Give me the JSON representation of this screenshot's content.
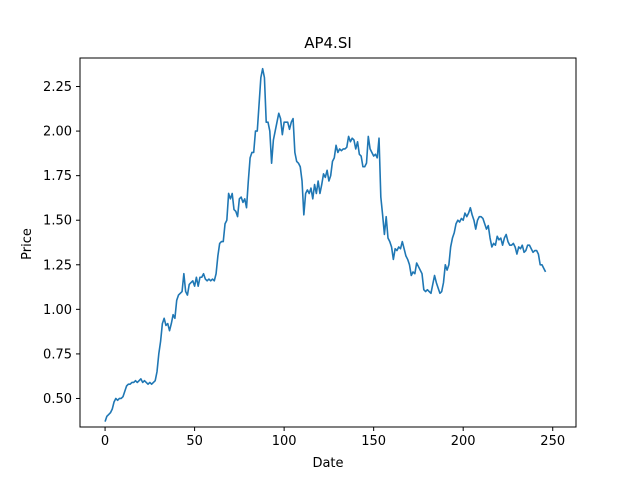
{
  "chart_data": {
    "type": "line",
    "title": "AP4.SI",
    "xlabel": "Date",
    "ylabel": "Price",
    "xlim": [
      -14,
      263
    ],
    "ylim": [
      0.34,
      2.41
    ],
    "xticks": [
      0,
      50,
      100,
      150,
      200,
      250
    ],
    "yticks": [
      0.5,
      0.75,
      1.0,
      1.25,
      1.5,
      1.75,
      2.0,
      2.25
    ],
    "xtick_labels": [
      "0",
      "50",
      "100",
      "150",
      "200",
      "250"
    ],
    "ytick_labels": [
      "0.50",
      "0.75",
      "1.00",
      "1.25",
      "1.50",
      "1.75",
      "2.00",
      "2.25"
    ],
    "grid": false,
    "series": [
      {
        "color": "#1f77b4",
        "points": [
          [
            0,
            0.37
          ],
          [
            1,
            0.4
          ],
          [
            2,
            0.41
          ],
          [
            3,
            0.42
          ],
          [
            4,
            0.44
          ],
          [
            5,
            0.48
          ],
          [
            6,
            0.5
          ],
          [
            7,
            0.49
          ],
          [
            8,
            0.5
          ],
          [
            9,
            0.5
          ],
          [
            10,
            0.51
          ],
          [
            11,
            0.54
          ],
          [
            12,
            0.57
          ],
          [
            13,
            0.58
          ],
          [
            14,
            0.58
          ],
          [
            15,
            0.59
          ],
          [
            16,
            0.59
          ],
          [
            17,
            0.6
          ],
          [
            18,
            0.59
          ],
          [
            19,
            0.6
          ],
          [
            20,
            0.61
          ],
          [
            21,
            0.59
          ],
          [
            22,
            0.6
          ],
          [
            23,
            0.59
          ],
          [
            24,
            0.58
          ],
          [
            25,
            0.59
          ],
          [
            26,
            0.58
          ],
          [
            27,
            0.59
          ],
          [
            28,
            0.6
          ],
          [
            29,
            0.65
          ],
          [
            30,
            0.75
          ],
          [
            31,
            0.82
          ],
          [
            32,
            0.92
          ],
          [
            33,
            0.95
          ],
          [
            34,
            0.91
          ],
          [
            35,
            0.92
          ],
          [
            36,
            0.88
          ],
          [
            37,
            0.92
          ],
          [
            38,
            0.97
          ],
          [
            39,
            0.95
          ],
          [
            40,
            1.05
          ],
          [
            41,
            1.08
          ],
          [
            42,
            1.09
          ],
          [
            43,
            1.1
          ],
          [
            44,
            1.2
          ],
          [
            45,
            1.1
          ],
          [
            46,
            1.08
          ],
          [
            47,
            1.14
          ],
          [
            48,
            1.15
          ],
          [
            49,
            1.16
          ],
          [
            50,
            1.13
          ],
          [
            51,
            1.18
          ],
          [
            52,
            1.13
          ],
          [
            53,
            1.18
          ],
          [
            54,
            1.18
          ],
          [
            55,
            1.2
          ],
          [
            56,
            1.17
          ],
          [
            57,
            1.16
          ],
          [
            58,
            1.17
          ],
          [
            59,
            1.16
          ],
          [
            60,
            1.17
          ],
          [
            61,
            1.16
          ],
          [
            62,
            1.2
          ],
          [
            63,
            1.3
          ],
          [
            64,
            1.37
          ],
          [
            65,
            1.38
          ],
          [
            66,
            1.38
          ],
          [
            67,
            1.48
          ],
          [
            68,
            1.5
          ],
          [
            69,
            1.65
          ],
          [
            70,
            1.62
          ],
          [
            71,
            1.65
          ],
          [
            72,
            1.56
          ],
          [
            73,
            1.55
          ],
          [
            74,
            1.52
          ],
          [
            75,
            1.62
          ],
          [
            76,
            1.63
          ],
          [
            77,
            1.6
          ],
          [
            78,
            1.62
          ],
          [
            79,
            1.57
          ],
          [
            80,
            1.72
          ],
          [
            81,
            1.85
          ],
          [
            82,
            1.88
          ],
          [
            83,
            1.88
          ],
          [
            84,
            2.0
          ],
          [
            85,
            2.0
          ],
          [
            86,
            2.15
          ],
          [
            87,
            2.3
          ],
          [
            88,
            2.35
          ],
          [
            89,
            2.3
          ],
          [
            90,
            2.05
          ],
          [
            91,
            2.05
          ],
          [
            92,
            2.0
          ],
          [
            93,
            1.82
          ],
          [
            94,
            1.95
          ],
          [
            95,
            2.0
          ],
          [
            96,
            2.05
          ],
          [
            97,
            2.1
          ],
          [
            98,
            2.07
          ],
          [
            99,
            1.98
          ],
          [
            100,
            2.05
          ],
          [
            101,
            2.05
          ],
          [
            102,
            2.05
          ],
          [
            103,
            2.01
          ],
          [
            104,
            2.05
          ],
          [
            105,
            2.07
          ],
          [
            106,
            1.88
          ],
          [
            107,
            1.83
          ],
          [
            108,
            1.82
          ],
          [
            109,
            1.8
          ],
          [
            110,
            1.72
          ],
          [
            111,
            1.53
          ],
          [
            112,
            1.65
          ],
          [
            113,
            1.67
          ],
          [
            114,
            1.65
          ],
          [
            115,
            1.68
          ],
          [
            116,
            1.62
          ],
          [
            117,
            1.7
          ],
          [
            118,
            1.65
          ],
          [
            119,
            1.72
          ],
          [
            120,
            1.65
          ],
          [
            121,
            1.7
          ],
          [
            122,
            1.76
          ],
          [
            123,
            1.74
          ],
          [
            124,
            1.78
          ],
          [
            125,
            1.72
          ],
          [
            126,
            1.75
          ],
          [
            127,
            1.83
          ],
          [
            128,
            1.85
          ],
          [
            129,
            1.92
          ],
          [
            130,
            1.88
          ],
          [
            131,
            1.9
          ],
          [
            132,
            1.89
          ],
          [
            133,
            1.9
          ],
          [
            134,
            1.9
          ],
          [
            135,
            1.91
          ],
          [
            136,
            1.97
          ],
          [
            137,
            1.94
          ],
          [
            138,
            1.96
          ],
          [
            139,
            1.95
          ],
          [
            140,
            1.9
          ],
          [
            141,
            1.94
          ],
          [
            142,
            1.87
          ],
          [
            143,
            1.86
          ],
          [
            144,
            1.8
          ],
          [
            145,
            1.8
          ],
          [
            146,
            1.82
          ],
          [
            147,
            1.97
          ],
          [
            148,
            1.9
          ],
          [
            149,
            1.88
          ],
          [
            150,
            1.86
          ],
          [
            151,
            1.87
          ],
          [
            152,
            1.85
          ],
          [
            153,
            1.96
          ],
          [
            154,
            1.63
          ],
          [
            155,
            1.53
          ],
          [
            156,
            1.42
          ],
          [
            157,
            1.52
          ],
          [
            158,
            1.4
          ],
          [
            159,
            1.38
          ],
          [
            160,
            1.35
          ],
          [
            161,
            1.28
          ],
          [
            162,
            1.34
          ],
          [
            163,
            1.33
          ],
          [
            164,
            1.35
          ],
          [
            165,
            1.34
          ],
          [
            166,
            1.38
          ],
          [
            167,
            1.34
          ],
          [
            168,
            1.3
          ],
          [
            169,
            1.28
          ],
          [
            170,
            1.25
          ],
          [
            171,
            1.19
          ],
          [
            172,
            1.21
          ],
          [
            173,
            1.2
          ],
          [
            174,
            1.26
          ],
          [
            175,
            1.24
          ],
          [
            176,
            1.22
          ],
          [
            177,
            1.2
          ],
          [
            178,
            1.11
          ],
          [
            179,
            1.1
          ],
          [
            180,
            1.11
          ],
          [
            181,
            1.1
          ],
          [
            182,
            1.09
          ],
          [
            183,
            1.14
          ],
          [
            184,
            1.19
          ],
          [
            185,
            1.15
          ],
          [
            186,
            1.12
          ],
          [
            187,
            1.09
          ],
          [
            188,
            1.1
          ],
          [
            189,
            1.15
          ],
          [
            190,
            1.25
          ],
          [
            191,
            1.22
          ],
          [
            192,
            1.25
          ],
          [
            193,
            1.35
          ],
          [
            194,
            1.4
          ],
          [
            195,
            1.43
          ],
          [
            196,
            1.48
          ],
          [
            197,
            1.5
          ],
          [
            198,
            1.49
          ],
          [
            199,
            1.51
          ],
          [
            200,
            1.5
          ],
          [
            201,
            1.54
          ],
          [
            202,
            1.52
          ],
          [
            203,
            1.54
          ],
          [
            204,
            1.57
          ],
          [
            205,
            1.53
          ],
          [
            206,
            1.5
          ],
          [
            207,
            1.45
          ],
          [
            208,
            1.5
          ],
          [
            209,
            1.52
          ],
          [
            210,
            1.52
          ],
          [
            211,
            1.51
          ],
          [
            212,
            1.48
          ],
          [
            213,
            1.45
          ],
          [
            214,
            1.47
          ],
          [
            215,
            1.4
          ],
          [
            216,
            1.35
          ],
          [
            217,
            1.37
          ],
          [
            218,
            1.36
          ],
          [
            219,
            1.41
          ],
          [
            220,
            1.39
          ],
          [
            221,
            1.4
          ],
          [
            222,
            1.36
          ],
          [
            223,
            1.4
          ],
          [
            224,
            1.42
          ],
          [
            225,
            1.38
          ],
          [
            226,
            1.36
          ],
          [
            227,
            1.36
          ],
          [
            228,
            1.37
          ],
          [
            229,
            1.35
          ],
          [
            230,
            1.31
          ],
          [
            231,
            1.35
          ],
          [
            232,
            1.34
          ],
          [
            233,
            1.36
          ],
          [
            234,
            1.32
          ],
          [
            235,
            1.33
          ],
          [
            236,
            1.36
          ],
          [
            237,
            1.36
          ],
          [
            238,
            1.34
          ],
          [
            239,
            1.32
          ],
          [
            240,
            1.33
          ],
          [
            241,
            1.33
          ],
          [
            242,
            1.31
          ],
          [
            243,
            1.25
          ],
          [
            244,
            1.25
          ],
          [
            245,
            1.23
          ],
          [
            246,
            1.21
          ]
        ]
      }
    ]
  }
}
